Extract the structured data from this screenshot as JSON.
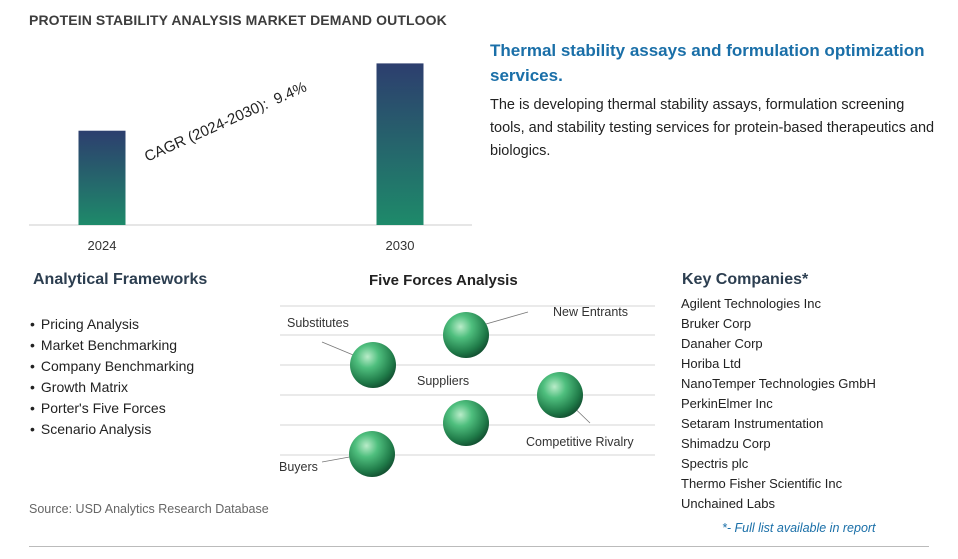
{
  "title": "PROTEIN STABILITY ANALYSIS MARKET DEMAND OUTLOOK",
  "chart_data": {
    "type": "bar",
    "categories": [
      "2024",
      "2030"
    ],
    "values": [
      1.0,
      1.714
    ],
    "ylim": [
      0,
      1.75
    ],
    "annotation": {
      "label": "CAGR (2024-2030):",
      "value": "9.4%"
    },
    "colors": {
      "bar_top": "#2d3e6e",
      "bar_bottom": "#1e8a6a"
    }
  },
  "highlight": {
    "title": "Thermal stability assays and formulation optimization services.",
    "description": "The is developing thermal stability assays, formulation screening tools, and stability testing services for protein-based therapeutics and biologics."
  },
  "frameworks": {
    "title": "Analytical Frameworks",
    "items": [
      "Pricing Analysis",
      "Market Benchmarking",
      "Company Benchmarking",
      "Growth Matrix",
      "Porter's Five Forces",
      "Scenario Analysis"
    ]
  },
  "five_forces": {
    "title": "Five Forces Analysis",
    "labels": {
      "substitutes": "Substitutes",
      "new_entrants": "New Entrants",
      "suppliers": "Suppliers",
      "competitive_rivalry": "Competitive Rivalry",
      "buyers": "Buyers"
    },
    "sphere_color": "#2e9a5e"
  },
  "key_companies": {
    "title": "Key Companies*",
    "items": [
      "Agilent Technologies Inc",
      "Bruker Corp",
      "Danaher Corp",
      "Horiba Ltd",
      "NanoTemper Technologies GmbH",
      "PerkinElmer Inc",
      "Setaram Instrumentation",
      "Shimadzu Corp",
      "Spectris plc",
      "Thermo Fisher Scientific Inc",
      "Unchained Labs"
    ],
    "note": "*- Full list available in report"
  },
  "source": "Source: USD Analytics Research Database"
}
